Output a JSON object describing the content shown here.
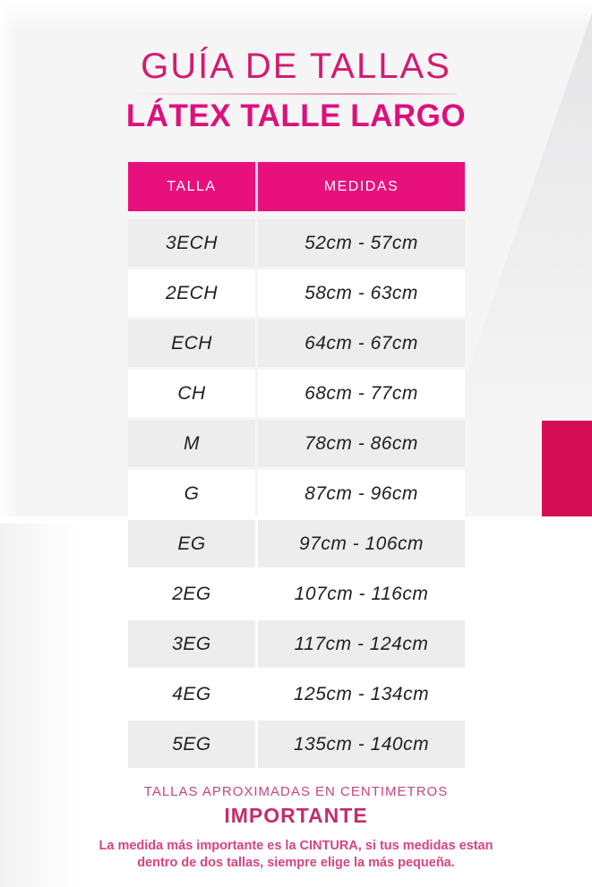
{
  "header": {
    "title": "GUÍA DE TALLAS",
    "subtitle": "LÁTEX TALLE LARGO"
  },
  "table": {
    "columns": {
      "size": "TALLA",
      "measurements": "MEDIDAS"
    },
    "rows": [
      {
        "size": "3ECH",
        "measurements": "52cm - 57cm"
      },
      {
        "size": "2ECH",
        "measurements": "58cm - 63cm"
      },
      {
        "size": "ECH",
        "measurements": "64cm - 67cm"
      },
      {
        "size": "CH",
        "measurements": "68cm - 77cm"
      },
      {
        "size": "M",
        "measurements": "78cm - 86cm"
      },
      {
        "size": "G",
        "measurements": "87cm - 96cm"
      },
      {
        "size": "EG",
        "measurements": "97cm - 106cm"
      },
      {
        "size": "2EG",
        "measurements": "107cm - 116cm"
      },
      {
        "size": "3EG",
        "measurements": "117cm - 124cm"
      },
      {
        "size": "4EG",
        "measurements": "125cm - 134cm"
      },
      {
        "size": "5EG",
        "measurements": "135cm - 140cm"
      }
    ]
  },
  "footer": {
    "approx_note": "TALLAS APROXIMADAS EN CENTIMETROS",
    "important_label": "IMPORTANTE",
    "note_lines": [
      "La medida más importante es la CINTURA, si tus medidas estan",
      "dentro de dos tallas, siempre elige la más pequeña."
    ]
  },
  "colors": {
    "header_magenta": "#E7107D",
    "accent_crimson": "#D50D55",
    "title_pink": "#D31B70",
    "subtitle_pink": "#DE107C",
    "row_gray": "#EDEDED",
    "row_text": "#1F1F1F",
    "footer_pink": "#C9447F",
    "important_pink": "#C52D67",
    "note_pink": "#D94383"
  }
}
